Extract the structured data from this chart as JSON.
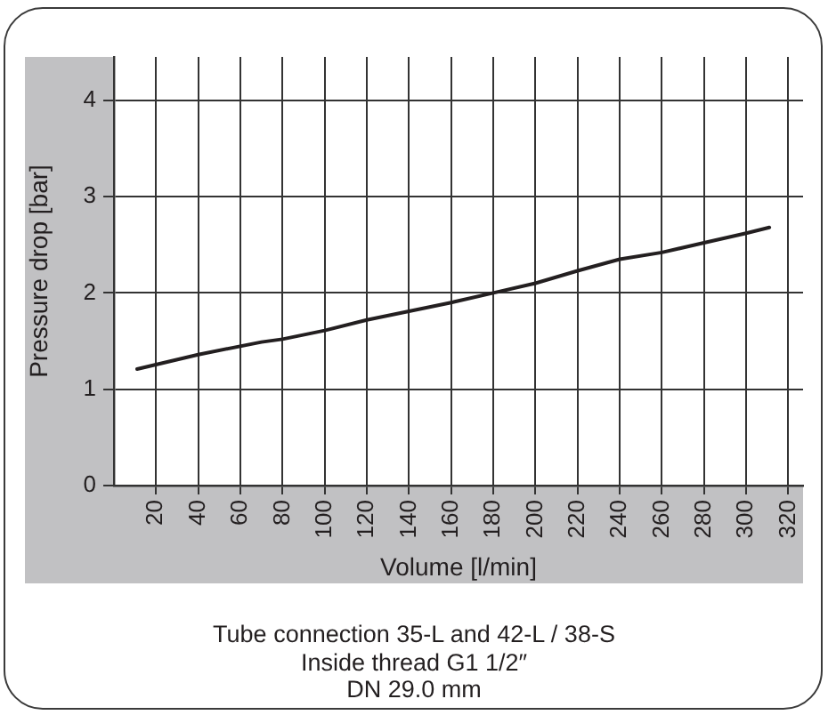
{
  "chart_data": {
    "type": "line",
    "xlabel": "Volume [l/min]",
    "ylabel": "Pressure drop [bar]",
    "x": [
      11,
      40,
      70,
      80,
      100,
      120,
      140,
      160,
      180,
      200,
      220,
      240,
      260,
      280,
      300,
      311
    ],
    "series": [
      {
        "color": "#231f20",
        "values": [
          1.21,
          1.36,
          1.49,
          1.52,
          1.61,
          1.72,
          1.81,
          1.9,
          2.0,
          2.1,
          2.23,
          2.35,
          2.42,
          2.52,
          2.62,
          2.68
        ]
      }
    ],
    "xlim": [
      0,
      327
    ],
    "xticks": [
      20,
      40,
      60,
      80,
      100,
      120,
      140,
      160,
      180,
      200,
      220,
      240,
      260,
      280,
      300,
      320
    ],
    "ylim": [
      0,
      4.45
    ],
    "yticks": [
      0,
      1,
      2,
      3,
      4
    ],
    "grid": true,
    "marker": "none",
    "annotations": [
      "Tube connection 35-L and 42-L / 38-S",
      "Inside thread  G1 1/2″",
      "DN 29.0 mm"
    ]
  }
}
